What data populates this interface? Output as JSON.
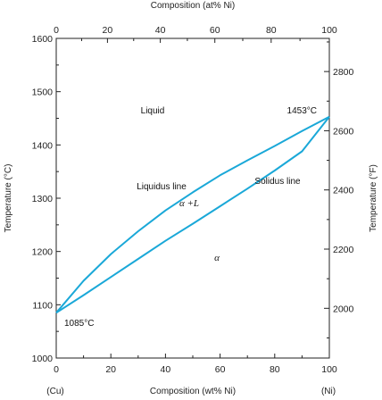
{
  "chart_data": {
    "type": "line",
    "xlabel_bottom": "Composition (wt% Ni)",
    "xlabel_top": "Composition (at% Ni)",
    "ylabel_left": "Temperature (°C)",
    "ylabel_right": "Temperature (°F)",
    "xlim": [
      0,
      100
    ],
    "ylim": [
      1000,
      1600
    ],
    "xticks_bottom": [
      0,
      20,
      40,
      60,
      80,
      100
    ],
    "xticks_top": [
      0,
      20,
      40,
      60,
      80,
      100
    ],
    "yticks_left": [
      1000,
      1100,
      1200,
      1300,
      1400,
      1500,
      1600
    ],
    "yticks_right": [
      2000,
      2200,
      2400,
      2600,
      2800
    ],
    "end_labels": {
      "left": "(Cu)",
      "right": "(Ni)"
    },
    "series": [
      {
        "name": "Liquidus line",
        "x": [
          0,
          10,
          20,
          30,
          40,
          50,
          60,
          70,
          80,
          90,
          100
        ],
        "y": [
          1085,
          1145,
          1195,
          1238,
          1277,
          1311,
          1343,
          1371,
          1398,
          1426,
          1453
        ]
      },
      {
        "name": "Solidus line",
        "x": [
          0,
          10,
          20,
          30,
          40,
          50,
          60,
          70,
          80,
          90,
          100
        ],
        "y": [
          1085,
          1118,
          1152,
          1186,
          1220,
          1252,
          1285,
          1318,
          1352,
          1388,
          1453
        ]
      }
    ],
    "annotations": {
      "liquid": "Liquid",
      "alpha_plus_l": "α +L",
      "alpha": "α",
      "cu_melting": "1085°C",
      "ni_melting": "1453°C",
      "liquidus_label": "Liquidus line",
      "solidus_label": "Solidus line"
    },
    "line_color": "#1aa8d8"
  }
}
